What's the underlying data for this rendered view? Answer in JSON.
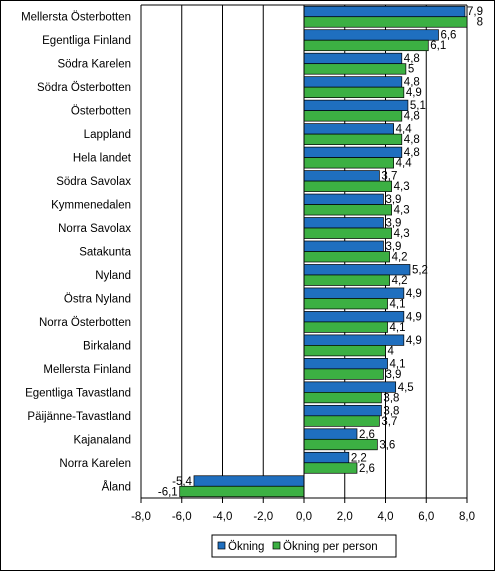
{
  "chart_data": {
    "type": "bar",
    "orientation": "horizontal",
    "categories": [
      "Mellersta Österbotten",
      "Egentliga Finland",
      "Södra Karelen",
      "Södra Österbotten",
      "Österbotten",
      "Lappland",
      "Hela landet",
      "Södra Savolax",
      "Kymmenedalen",
      "Norra Savolax",
      "Satakunta",
      "Nyland",
      "Östra Nyland",
      "Norra Österbotten",
      "Birkaland",
      "Mellersta Finland",
      "Egentliga Tavastland",
      "Päijänne-Tavastland",
      "Kajanaland",
      "Norra Karelen",
      "Åland"
    ],
    "series": [
      {
        "name": "Ökning",
        "color": "#1f6fbf",
        "values": [
          7.9,
          6.6,
          4.8,
          4.8,
          5.1,
          4.4,
          4.8,
          3.7,
          3.9,
          3.9,
          3.9,
          5.2,
          4.9,
          4.9,
          4.9,
          4.1,
          4.5,
          3.8,
          2.6,
          2.2,
          -5.4
        ],
        "labels": [
          "7,9",
          "6,6",
          "4,8",
          "4,8",
          "5,1",
          "4,4",
          "4,8",
          "3,7",
          "3,9",
          "3,9",
          "3,9",
          "5,2",
          "4,9",
          "4,9",
          "4,9",
          "4,1",
          "4,5",
          "3,8",
          "2,6",
          "2,2",
          "-5,4"
        ]
      },
      {
        "name": "Ökning per person",
        "color": "#3cb043",
        "values": [
          8.0,
          6.1,
          5.0,
          4.9,
          4.8,
          4.8,
          4.4,
          4.3,
          4.3,
          4.3,
          4.2,
          4.2,
          4.1,
          4.1,
          4.0,
          3.9,
          3.8,
          3.7,
          3.6,
          2.6,
          -6.1
        ],
        "labels": [
          "8",
          "6,1",
          "5",
          "4,9",
          "4,8",
          "4,8",
          "4,4",
          "4,3",
          "4,3",
          "4,3",
          "4,2",
          "4,2",
          "4,1",
          "4,1",
          "4",
          "3,9",
          "3,8",
          "3,7",
          "3,6",
          "2,6",
          "-6,1"
        ]
      }
    ],
    "xlim": [
      -8,
      8
    ],
    "xticks": [
      -8,
      -6,
      -4,
      -2,
      0,
      2,
      4,
      6,
      8
    ],
    "xtick_labels": [
      "-8,0",
      "-6,0",
      "-4,0",
      "-2,0",
      "0,0",
      "2,0",
      "4,0",
      "6,0",
      "8,0"
    ],
    "grid": "vertical",
    "legend_position": "bottom"
  }
}
